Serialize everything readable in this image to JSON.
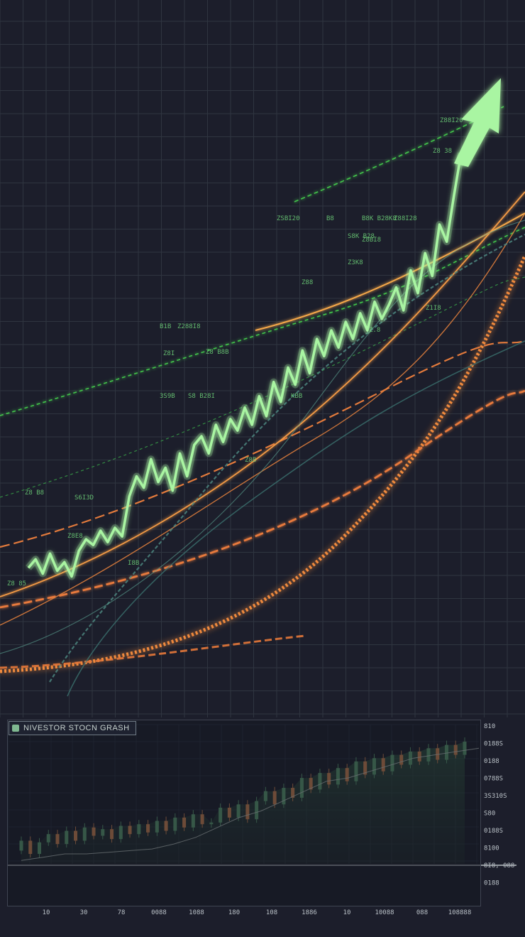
{
  "colors": {
    "background": "#1c1e2b",
    "grid": "#2f3540",
    "main_line": "#a9f5a2",
    "orange": "#f08a3c",
    "green_dashed": "#43c54b",
    "teal": "#4f8b83",
    "candle_up": "#5fa577",
    "candle_down": "#d98a55"
  },
  "scattered_labels": [
    "ZSBI20",
    "B8",
    "B8K B28K8",
    "Z88I28",
    "S8K B28",
    "Z8BI8",
    "Z3K8",
    "Z88",
    "Z1I8",
    "B1B",
    "Z288I8",
    "Z8I",
    "Z8 B8B",
    "3S9B",
    "S8 B28I",
    "KBB",
    "Z8 B8",
    "S6I3D",
    "Z8E8",
    "Z8B",
    "Z.8",
    "Z88I20",
    "Z8 38",
    "Z8 85",
    "I8B"
  ],
  "chart_data": [
    {
      "type": "line",
      "x": [
        0,
        1,
        2,
        3,
        4,
        5,
        6,
        7,
        8,
        9,
        10,
        11,
        12,
        13,
        14,
        15,
        16,
        17,
        18,
        19,
        20,
        21,
        22,
        23,
        24,
        25,
        26,
        27,
        28,
        29,
        30,
        31,
        32,
        33,
        34,
        35,
        36,
        37,
        38,
        39,
        40,
        41,
        42,
        43,
        44,
        45,
        46,
        47,
        48,
        49,
        50,
        51,
        52,
        53,
        54,
        55,
        56,
        57,
        58,
        59,
        60
      ],
      "series": [
        {
          "values": [
            20,
            23,
            18,
            25,
            19,
            22,
            17,
            26,
            30,
            28,
            33,
            29,
            34,
            31,
            45,
            52,
            48,
            58,
            50,
            55,
            47,
            60,
            52,
            63,
            66,
            60,
            70,
            64,
            72,
            68,
            76,
            70,
            80,
            73,
            85,
            78,
            90,
            84,
            96,
            88,
            100,
            94,
            103,
            97,
            106,
            100,
            109,
            103,
            113,
            107,
            112,
            118,
            110,
            124,
            116,
            130,
            122,
            140,
            134,
            150,
            165
          ]
        }
      ],
      "ylim": [
        0,
        175
      ],
      "grid": true,
      "annotation": "upward arrow at end of main line"
    },
    {
      "type": "bar",
      "title": "NIVESTOR STOCN GRASH",
      "x_tick_labels": [
        "10",
        "30",
        "78",
        "0088",
        "1088",
        "180",
        "108",
        "1886",
        "10",
        "10088",
        "088",
        "108888"
      ],
      "y_tick_labels": [
        "810",
        "0188S",
        "0188",
        "0788S",
        "3S310S",
        "S80",
        "0188S",
        "8100",
        "8I8, 088",
        "0188"
      ],
      "candles": [
        {
          "open": 8,
          "close": 14
        },
        {
          "open": 14,
          "close": 6
        },
        {
          "open": 6,
          "close": 13
        },
        {
          "open": 13,
          "close": 18
        },
        {
          "open": 18,
          "close": 12
        },
        {
          "open": 12,
          "close": 20
        },
        {
          "open": 20,
          "close": 14
        },
        {
          "open": 14,
          "close": 22
        },
        {
          "open": 22,
          "close": 17
        },
        {
          "open": 17,
          "close": 21
        },
        {
          "open": 21,
          "close": 15
        },
        {
          "open": 15,
          "close": 23
        },
        {
          "open": 23,
          "close": 18
        },
        {
          "open": 18,
          "close": 24
        },
        {
          "open": 24,
          "close": 19
        },
        {
          "open": 19,
          "close": 26
        },
        {
          "open": 26,
          "close": 20
        },
        {
          "open": 20,
          "close": 28
        },
        {
          "open": 28,
          "close": 22
        },
        {
          "open": 22,
          "close": 30
        },
        {
          "open": 30,
          "close": 24
        },
        {
          "open": 24,
          "close": 25
        },
        {
          "open": 25,
          "close": 34
        },
        {
          "open": 34,
          "close": 28
        },
        {
          "open": 28,
          "close": 36
        },
        {
          "open": 36,
          "close": 27
        },
        {
          "open": 27,
          "close": 38
        },
        {
          "open": 38,
          "close": 44
        },
        {
          "open": 44,
          "close": 36
        },
        {
          "open": 36,
          "close": 46
        },
        {
          "open": 46,
          "close": 40
        },
        {
          "open": 40,
          "close": 52
        },
        {
          "open": 52,
          "close": 45
        },
        {
          "open": 45,
          "close": 55
        },
        {
          "open": 55,
          "close": 48
        },
        {
          "open": 48,
          "close": 58
        },
        {
          "open": 58,
          "close": 50
        },
        {
          "open": 50,
          "close": 62
        },
        {
          "open": 62,
          "close": 54
        },
        {
          "open": 54,
          "close": 64
        },
        {
          "open": 64,
          "close": 56
        },
        {
          "open": 56,
          "close": 66
        },
        {
          "open": 66,
          "close": 60
        },
        {
          "open": 60,
          "close": 68
        },
        {
          "open": 68,
          "close": 62
        },
        {
          "open": 62,
          "close": 70
        },
        {
          "open": 70,
          "close": 63
        },
        {
          "open": 63,
          "close": 72
        },
        {
          "open": 72,
          "close": 66
        },
        {
          "open": 66,
          "close": 74
        }
      ],
      "trend": [
        2,
        4,
        6,
        6,
        7,
        8,
        9,
        12,
        16,
        22,
        28,
        32,
        38,
        44,
        50,
        52,
        56,
        60,
        64,
        66,
        68,
        70
      ],
      "ylim": [
        0,
        80
      ],
      "grid": true
    }
  ]
}
